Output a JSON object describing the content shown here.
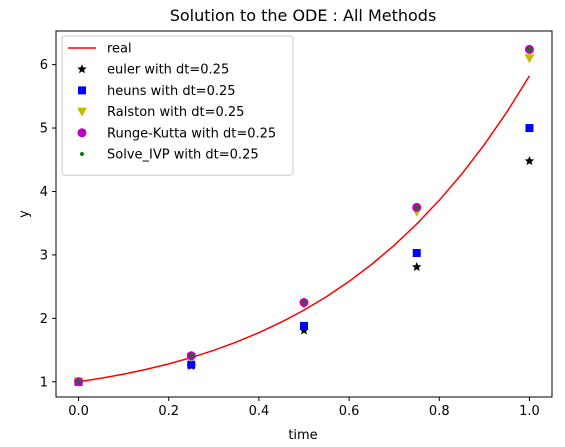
{
  "chart_data": {
    "type": "line",
    "title": "Solution to the ODE : All Methods",
    "xlabel": "time",
    "ylabel": "y",
    "xlim": [
      -0.05,
      1.05
    ],
    "ylim": [
      0.76,
      6.53
    ],
    "xticks": [
      0.0,
      0.2,
      0.4,
      0.6,
      0.8,
      1.0
    ],
    "xtick_labels": [
      "0.0",
      "0.2",
      "0.4",
      "0.6",
      "0.8",
      "1.0"
    ],
    "yticks": [
      1,
      2,
      3,
      4,
      5,
      6
    ],
    "ytick_labels": [
      "1",
      "2",
      "3",
      "4",
      "5",
      "6"
    ],
    "grid": false,
    "legend_position": "top-left",
    "series": [
      {
        "name": "real",
        "kind": "line",
        "color": "#ff0000",
        "x": [
          0,
          0.05,
          0.1,
          0.15,
          0.2,
          0.25,
          0.3,
          0.35,
          0.4,
          0.45,
          0.5,
          0.55,
          0.6,
          0.65,
          0.7,
          0.75,
          0.8,
          0.85,
          0.9,
          0.95,
          1.0
        ],
        "y": [
          1.0,
          1.055,
          1.12,
          1.195,
          1.282,
          1.382,
          1.496,
          1.626,
          1.774,
          1.941,
          2.13,
          2.343,
          2.582,
          2.851,
          3.151,
          3.487,
          3.861,
          4.277,
          4.74,
          5.253,
          5.822
        ]
      },
      {
        "name": "euler with dt=0.25",
        "kind": "marker",
        "marker": "star",
        "color": "#000000",
        "x": [
          0,
          0.25,
          0.5,
          0.75,
          1.0
        ],
        "y": [
          1.0,
          1.25,
          1.81,
          2.81,
          4.48
        ]
      },
      {
        "name": "heuns with dt=0.25",
        "kind": "marker",
        "marker": "square",
        "color": "#0000ff",
        "x": [
          0,
          0.25,
          0.5,
          0.75,
          1.0
        ],
        "y": [
          1.0,
          1.27,
          1.88,
          3.03,
          5.0
        ]
      },
      {
        "name": "Ralston with dt=0.25",
        "kind": "marker",
        "marker": "triangle-down",
        "color": "#bfbf00",
        "x": [
          0,
          0.25,
          0.5,
          0.75,
          1.0
        ],
        "y": [
          1.0,
          1.39,
          2.22,
          3.68,
          6.1
        ]
      },
      {
        "name": "Runge-Kutta with dt=0.25",
        "kind": "marker",
        "marker": "circle",
        "color": "#bf00bf",
        "x": [
          0,
          0.25,
          0.5,
          0.75,
          1.0
        ],
        "y": [
          1.0,
          1.41,
          2.25,
          3.75,
          6.24
        ]
      },
      {
        "name": "Solve_IVP with dt=0.25",
        "kind": "marker",
        "marker": "point",
        "color": "#008000",
        "x": [
          0,
          0.25,
          0.5,
          0.75,
          1.0
        ],
        "y": [
          1.0,
          1.41,
          2.25,
          3.75,
          6.24
        ]
      }
    ]
  }
}
